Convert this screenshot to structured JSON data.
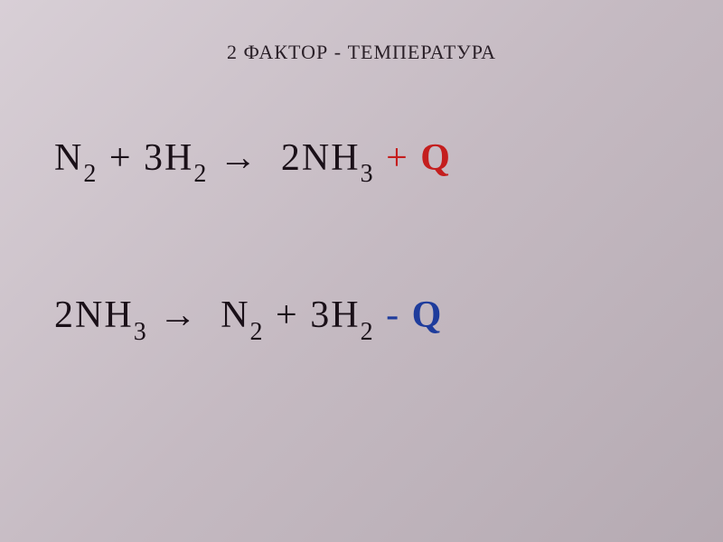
{
  "slide": {
    "title": "2  ФАКТОР - ТЕМПЕРАТУРА",
    "background_gradient": {
      "start": "#d8cfd6",
      "mid": "#c5bac2",
      "end": "#b5aab2"
    },
    "title_fontsize": 22,
    "title_color": "#2a2028",
    "equation_fontsize": 42,
    "equation_color": "#1a1018",
    "subscript_fontsize": 28,
    "q_red_color": "#c41e1e",
    "q_blue_color": "#1e3c9c"
  },
  "equation1": {
    "n2": "N",
    "n2_sub": "2",
    "plus1": " +   ",
    "h2_coef": "3",
    "h2": "H",
    "h2_sub": "2",
    "arrow": "→",
    "nh3_coef": "2",
    "nh3_n": "N",
    "nh3_h": "H",
    "nh3_sub": "3",
    "q_sign": " + ",
    "q": "Q"
  },
  "equation2": {
    "nh3_coef": "2",
    "nh3_n": "N",
    "nh3_h": "H",
    "nh3_sub": "3",
    "arrow": "→",
    "n2": "N",
    "n2_sub": "2",
    "plus1": " +   ",
    "h2_coef": "3",
    "h2": "H",
    "h2_sub": "2",
    "q_sign": " - ",
    "q": "Q"
  }
}
